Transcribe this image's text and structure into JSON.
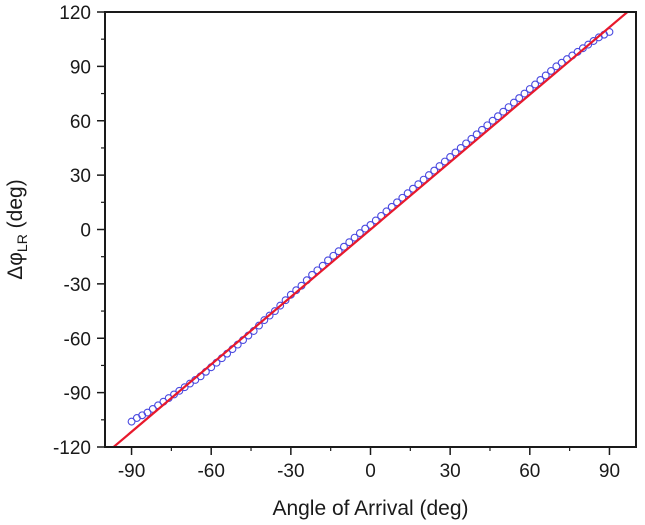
{
  "chart_data": {
    "type": "scatter",
    "xlabel": "Angle of Arrival (deg)",
    "ylabel": {
      "symbol": "Δφ",
      "subscript": "LR",
      "unit": "(deg)"
    },
    "xlim": [
      -100,
      100
    ],
    "ylim": [
      -120,
      120
    ],
    "xticks": [
      -90,
      -60,
      -30,
      0,
      30,
      60,
      90
    ],
    "yticks": [
      -120,
      -90,
      -60,
      -30,
      0,
      30,
      60,
      90,
      120
    ],
    "grid": false,
    "series": [
      {
        "kind": "markers",
        "marker": "open-circle",
        "color": "#4a4ae0",
        "x": [
          -90,
          -88,
          -86,
          -84,
          -82,
          -80,
          -78,
          -76,
          -74,
          -72,
          -70,
          -68,
          -66,
          -64,
          -62,
          -60,
          -58,
          -56,
          -54,
          -52,
          -50,
          -48,
          -46,
          -44,
          -42,
          -40,
          -38,
          -36,
          -34,
          -32,
          -30,
          -28,
          -26,
          -24,
          -22,
          -20,
          -18,
          -16,
          -14,
          -12,
          -10,
          -8,
          -6,
          -4,
          -2,
          0,
          2,
          4,
          6,
          8,
          10,
          12,
          14,
          16,
          18,
          20,
          22,
          24,
          26,
          28,
          30,
          32,
          34,
          36,
          38,
          40,
          42,
          44,
          46,
          48,
          50,
          52,
          54,
          56,
          58,
          60,
          62,
          64,
          66,
          68,
          70,
          72,
          74,
          76,
          78,
          80,
          82,
          84,
          86,
          88,
          90
        ],
        "y": [
          -106,
          -104,
          -102.5,
          -101,
          -99,
          -97,
          -95,
          -93,
          -91,
          -89,
          -87,
          -85,
          -83,
          -81,
          -78.5,
          -76,
          -73.5,
          -71,
          -68.5,
          -66,
          -63.5,
          -61,
          -58.5,
          -56,
          -53,
          -50,
          -47.5,
          -45,
          -42,
          -39,
          -36,
          -33.5,
          -31,
          -28,
          -25,
          -22.5,
          -20,
          -17,
          -14.5,
          -12,
          -9.5,
          -7,
          -4.5,
          -2,
          0.5,
          2.5,
          5,
          7.5,
          10,
          12.5,
          15,
          17.5,
          20,
          22.5,
          25,
          27.5,
          30,
          32.5,
          35,
          37.5,
          40,
          42.5,
          45,
          47.5,
          50,
          52.5,
          55,
          57.5,
          60,
          62.5,
          65,
          67.5,
          70,
          72.5,
          75,
          77.5,
          80,
          82.5,
          85,
          87.5,
          90,
          92,
          94,
          96,
          98,
          100,
          102,
          104,
          106,
          107.5,
          109
        ]
      },
      {
        "kind": "line",
        "color": "#e8192c",
        "x": [
          -100,
          100
        ],
        "y": [
          -124,
          124
        ]
      }
    ]
  }
}
